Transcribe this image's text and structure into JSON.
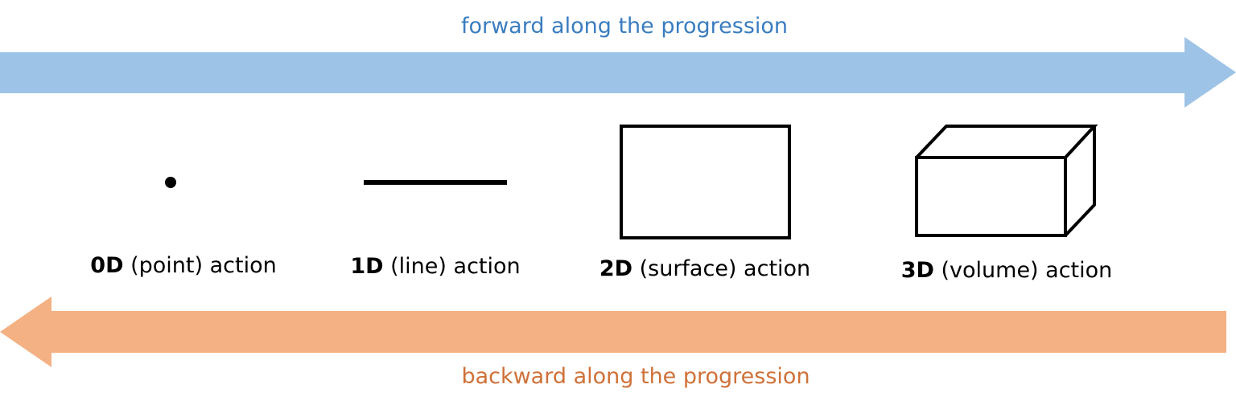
{
  "arrows": {
    "forward": {
      "label": "forward along the progression",
      "fill": "#9dc3e6",
      "text_color": "#3a7dbf",
      "direction": "right"
    },
    "backward": {
      "label": "backward along the progression",
      "fill": "#f4b183",
      "text_color": "#cf7138",
      "direction": "left"
    }
  },
  "stages": [
    {
      "dimension": "0D",
      "rest": " (point) action",
      "shape": "point-icon"
    },
    {
      "dimension": "1D",
      "rest": " (line) action",
      "shape": "line-icon"
    },
    {
      "dimension": "2D",
      "rest": " (surface) action",
      "shape": "rectangle-icon"
    },
    {
      "dimension": "3D",
      "rest": " (volume) action",
      "shape": "cuboid-icon"
    }
  ]
}
